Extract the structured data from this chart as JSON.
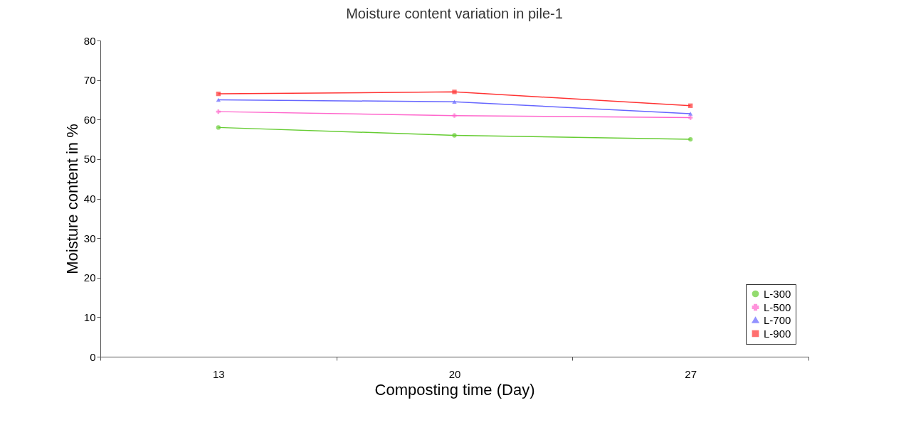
{
  "chart_data": {
    "type": "line",
    "title": "Moisture content variation in pile-1",
    "xlabel": "Composting time (Day)",
    "ylabel": "Moisture content in %",
    "categories": [
      "13",
      "20",
      "27"
    ],
    "series": [
      {
        "name": "L-300",
        "color": "#66cc33",
        "marker": "circle",
        "values": [
          58,
          56,
          55
        ]
      },
      {
        "name": "L-500",
        "color": "#ff66cc",
        "marker": "cross",
        "values": [
          62,
          61,
          60.5
        ]
      },
      {
        "name": "L-700",
        "color": "#6666ff",
        "marker": "triangle",
        "values": [
          65,
          64.5,
          61.5
        ]
      },
      {
        "name": "L-900",
        "color": "#ff3333",
        "marker": "square",
        "values": [
          66.5,
          67,
          63.5
        ]
      }
    ],
    "ylim": [
      0,
      80
    ],
    "yticks": [
      0,
      10,
      20,
      30,
      40,
      50,
      60,
      70,
      80
    ],
    "grid": false,
    "legend": "bottom right"
  }
}
